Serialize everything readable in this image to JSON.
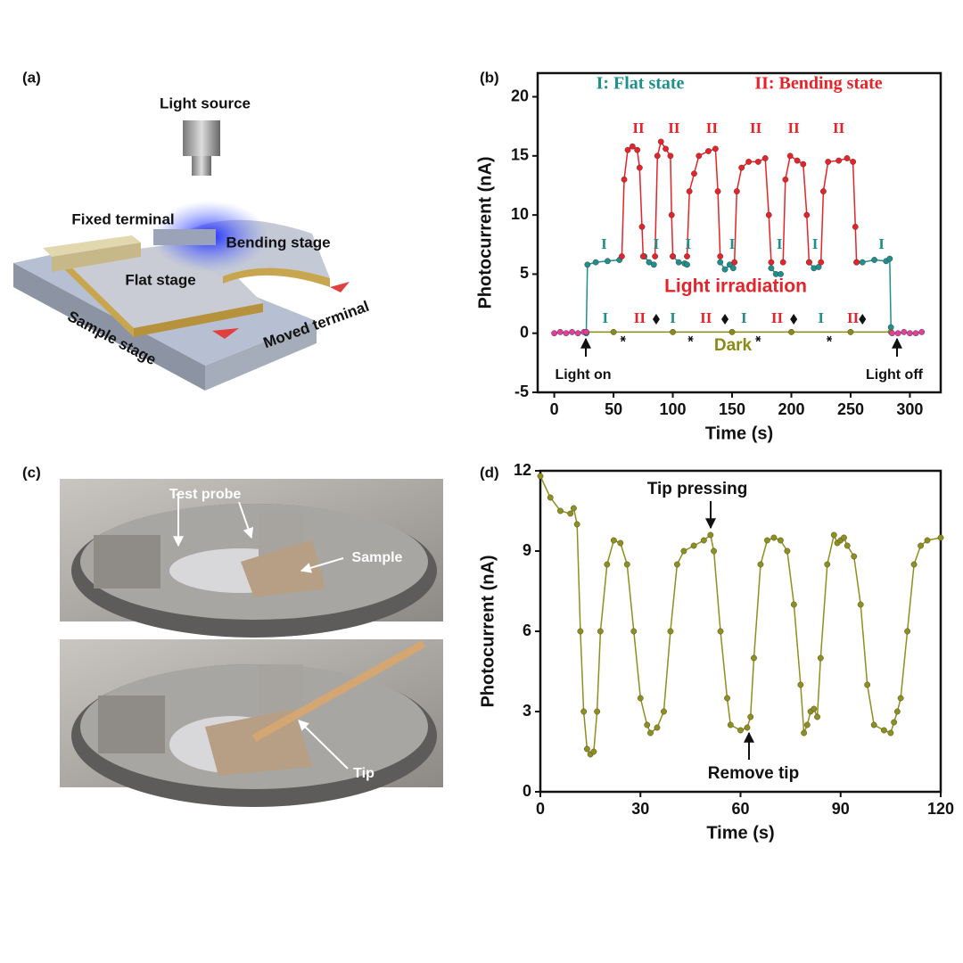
{
  "panel_labels": [
    "(a)",
    "(b)",
    "(c)",
    "(d)"
  ],
  "schematic": {
    "light_source": "Light source",
    "fixed_terminal": "Fixed terminal",
    "bending_stage": "Bending stage",
    "flat_stage": "Flat stage",
    "sample_stage": "Sample stage",
    "moved_terminal": "Moved terminal"
  },
  "photos": {
    "test_probe": "Test probe",
    "sample": "Sample",
    "tip": "Tip"
  },
  "chart_data": [
    {
      "type": "line",
      "x_label": "Time (s)",
      "y_label": "Photocurrent (nA)",
      "xlim": [
        -14,
        326
      ],
      "ylim": [
        -5,
        22
      ],
      "xticks": [
        0,
        50,
        100,
        150,
        200,
        250,
        300
      ],
      "yticks": [
        -5,
        0,
        5,
        10,
        15,
        20
      ],
      "series": [
        {
          "name": "I: Flat state",
          "color": "#1f8f8c",
          "x": [
            27,
            28,
            35,
            45,
            55,
            56,
            76,
            80,
            84,
            86,
            100,
            105,
            110,
            112,
            114,
            140,
            144,
            148,
            151,
            153,
            183,
            187,
            191,
            194,
            215,
            219,
            223,
            226,
            255,
            260,
            270,
            280,
            283,
            284
          ],
          "values": [
            0,
            5.8,
            6,
            6.1,
            6.2,
            null,
            6.5,
            6,
            5.8,
            null,
            6.5,
            6,
            5.9,
            5.8,
            null,
            6,
            5.4,
            5.8,
            5.5,
            null,
            5.5,
            5,
            5,
            null,
            6,
            5.5,
            5.6,
            null,
            6,
            6,
            6.2,
            6.1,
            6.3,
            0.5
          ]
        },
        {
          "name": "II: Bending state",
          "color": "#e52329",
          "x": [
            57,
            59,
            62,
            66,
            70,
            72,
            74,
            75,
            76,
            85,
            87,
            90,
            94,
            98,
            99,
            100,
            101,
            112,
            114,
            118,
            122,
            130,
            136,
            138,
            140,
            141,
            152,
            154,
            158,
            164,
            172,
            178,
            181,
            183,
            184,
            193,
            195,
            199,
            205,
            210,
            213,
            215,
            216,
            225,
            227,
            231,
            240,
            247,
            252,
            254,
            255
          ],
          "values": [
            6.5,
            13,
            15.5,
            15.8,
            15.5,
            14,
            9,
            6.5,
            null,
            6.5,
            15,
            16.2,
            15.6,
            15,
            10,
            6.5,
            null,
            6.5,
            12,
            13.5,
            15,
            15.4,
            15.6,
            12,
            6.5,
            null,
            6,
            12,
            14,
            14.5,
            14.5,
            14.8,
            10,
            6,
            null,
            6,
            13,
            15,
            14.6,
            14.3,
            10,
            6,
            null,
            6,
            12,
            14.5,
            14.6,
            14.8,
            14.5,
            9,
            6
          ]
        },
        {
          "name": "Dark",
          "color": "#8a8a16",
          "x": [
            27,
            50,
            100,
            150,
            200,
            250,
            284
          ],
          "values": [
            0.1,
            0.1,
            0.1,
            0.1,
            0.1,
            0.1,
            0.1
          ]
        },
        {
          "color": "#e0409a",
          "x": [
            0,
            5,
            10,
            15,
            20,
            25,
            27,
            28,
            285,
            290,
            295,
            300,
            305,
            310
          ],
          "values": [
            0,
            0.1,
            0,
            0.1,
            0,
            0.1,
            0.1,
            null,
            0,
            0,
            0.1,
            0,
            0,
            0.1
          ]
        }
      ],
      "annotations": {
        "irradiation": "Light irradiation",
        "flat_mark": "I",
        "bend_mark": "II",
        "light_on": "Light on",
        "light_off": "Light off"
      }
    },
    {
      "type": "line",
      "x_label": "Time (s)",
      "y_label": "Photocurrent (nA)",
      "xlim": [
        0,
        120
      ],
      "ylim": [
        0,
        12
      ],
      "xticks": [
        0,
        30,
        60,
        90,
        120
      ],
      "yticks": [
        0,
        3,
        6,
        9,
        12
      ],
      "series": [
        {
          "color": "#8f8f1c",
          "x": [
            0,
            3,
            6,
            9,
            10,
            11,
            12,
            13,
            14,
            15,
            16,
            17,
            18,
            20,
            22,
            24,
            26,
            28,
            30,
            32,
            33,
            35,
            37,
            39,
            41,
            43,
            46,
            49,
            51,
            52,
            54,
            56,
            57,
            60,
            62,
            63,
            64,
            66,
            68,
            70,
            72,
            74,
            76,
            78,
            79,
            80,
            81,
            82,
            83,
            84,
            86,
            88,
            89,
            90,
            91,
            92,
            94,
            96,
            98,
            100,
            103,
            105,
            106,
            107,
            108,
            110,
            112,
            114,
            116,
            120
          ],
          "values": [
            11.8,
            11,
            10.5,
            10.4,
            10.6,
            10,
            6,
            3,
            1.6,
            1.4,
            1.5,
            3,
            6,
            8.5,
            9.4,
            9.3,
            8.5,
            6,
            3.5,
            2.5,
            2.2,
            2.4,
            3,
            6,
            8.5,
            9,
            9.2,
            9.4,
            9.6,
            9,
            6,
            3.5,
            2.5,
            2.3,
            2.4,
            2.8,
            5,
            8.5,
            9.4,
            9.5,
            9.4,
            9,
            7,
            4,
            2.2,
            2.5,
            3,
            3.1,
            2.8,
            5,
            8.5,
            9.6,
            9.3,
            9.4,
            9.5,
            9.2,
            8.8,
            7,
            4,
            2.5,
            2.3,
            2.2,
            2.6,
            3,
            3.5,
            6,
            8.5,
            9.2,
            9.4,
            9.5
          ]
        }
      ],
      "annotations": {
        "tip_pressing": "Tip pressing",
        "remove_tip": "Remove tip"
      }
    }
  ]
}
